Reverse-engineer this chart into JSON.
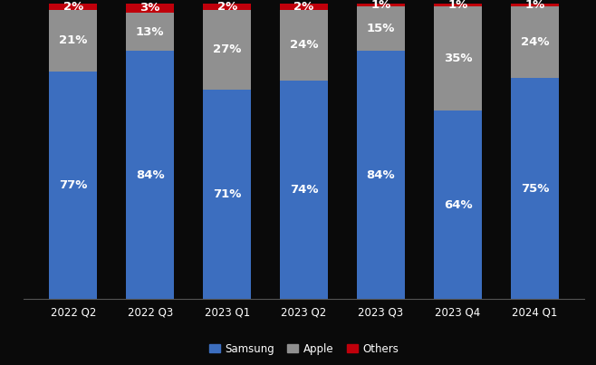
{
  "categories": [
    "2022 Q2",
    "2022 Q3",
    "2023 Q1",
    "2023 Q2",
    "2023 Q3",
    "2023 Q4",
    "2024 Q1"
  ],
  "samsung": [
    77,
    84,
    71,
    74,
    84,
    64,
    75
  ],
  "apple": [
    21,
    13,
    27,
    24,
    15,
    35,
    24
  ],
  "others": [
    2,
    3,
    2,
    2,
    1,
    1,
    1
  ],
  "samsung_color": "#3c6ebf",
  "apple_color": "#909090",
  "others_color": "#c0000b",
  "background_color": "#0a0a0a",
  "text_color": "#ffffff",
  "label_fontsize": 9.5,
  "tick_fontsize": 8.5,
  "legend_fontsize": 8.5,
  "bar_width": 0.62
}
